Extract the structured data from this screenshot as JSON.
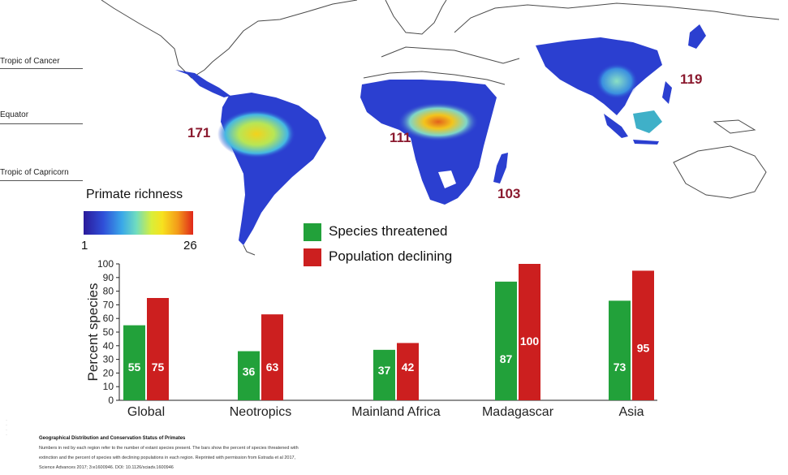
{
  "map_labels": {
    "tropic_cancer": "Tropic of Cancer",
    "equator": "Equator",
    "tropic_capricorn": "Tropic of Capricorn"
  },
  "richness_legend": {
    "title": "Primate richness",
    "min": "1",
    "max": "26"
  },
  "region_counts": {
    "neotropics": "171",
    "africa": "111",
    "madagascar": "103",
    "asia": "119",
    "color": "#8b1a2f"
  },
  "colors": {
    "land": "#ffffff",
    "coast": "#4a4a4a",
    "high_richness": "#2b3fd0",
    "threatened": "#22a13a",
    "declining": "#cc1f1f"
  },
  "chart_data": {
    "type": "bar",
    "categories": [
      "Global",
      "Neotropics",
      "Mainland Africa",
      "Madagascar",
      "Asia"
    ],
    "series": [
      {
        "name": "Species threatened",
        "values": [
          55,
          36,
          37,
          87,
          73
        ],
        "color": "#22a13a"
      },
      {
        "name": "Population declining",
        "values": [
          75,
          63,
          42,
          100,
          95
        ],
        "color": "#cc1f1f"
      }
    ],
    "ylabel": "Percent species",
    "ylim": [
      0,
      100
    ],
    "yticks": [
      0,
      10,
      20,
      30,
      40,
      50,
      60,
      70,
      80,
      90,
      100
    ],
    "legend_position": "top-center",
    "grid": false
  },
  "caption": {
    "title": "Geographical Distribution and Conservation Status of Primates",
    "line1": "Numbers in red by each region refer to the number of extant species present. The bars show the percent of species threatened with",
    "line2": "extinction and the percent of species with declining populations in each region. Reprinted with permission from Estrada et al 2017,",
    "line3": "Science Advances 2017; 3:e1600946. DOI: 10.1126/sciadv.1600946"
  }
}
